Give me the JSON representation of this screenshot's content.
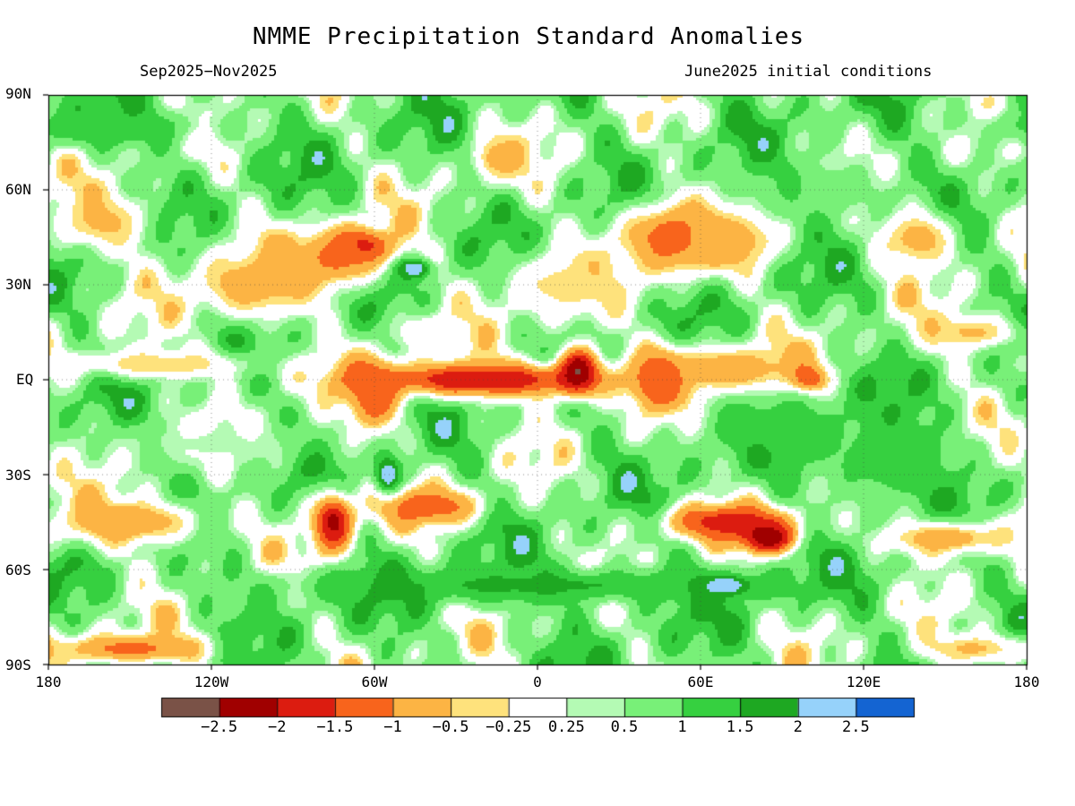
{
  "header": {
    "title": "NMME Precipitation Standard Anomalies",
    "period": "Sep2025−Nov2025",
    "init": "June2025 initial conditions"
  },
  "axes": {
    "lat_labels": [
      "90N",
      "60N",
      "30N",
      "EQ",
      "30S",
      "60S",
      "90S"
    ],
    "lon_labels": [
      "180",
      "120W",
      "60W",
      "0",
      "60E",
      "120E",
      "180"
    ]
  },
  "colorbar": {
    "colors": [
      "#7a5247",
      "#a00000",
      "#dc1c10",
      "#f8641c",
      "#fcb444",
      "#fee27c",
      "#ffffff",
      "#b4fab4",
      "#78f078",
      "#36d040",
      "#1ea822",
      "#96d2fa",
      "#1464d2"
    ],
    "labels": [
      "−2.5",
      "−2",
      "−1.5",
      "−1",
      "−0.5",
      "−0.25",
      "0.25",
      "0.5",
      "1",
      "1.5",
      "2",
      "2.5"
    ]
  },
  "map_data": {
    "type": "global-anomaly-map",
    "x_range": [
      -180,
      180
    ],
    "y_range": [
      -90,
      90
    ],
    "background_anomaly": 0.7,
    "features": [
      {
        "lon": -65,
        "lat": 42,
        "rx": 12,
        "ry": 6,
        "value": -2.2
      },
      {
        "lon": -75,
        "lat": 38,
        "rx": 18,
        "ry": 10,
        "value": -1.2
      },
      {
        "lon": -105,
        "lat": 30,
        "rx": 25,
        "ry": 12,
        "value": -0.8
      },
      {
        "lon": -160,
        "lat": 50,
        "rx": 20,
        "ry": 10,
        "value": -0.6
      },
      {
        "lon": -45,
        "lat": 35,
        "rx": 6,
        "ry": 3,
        "value": 2.5
      },
      {
        "lon": -20,
        "lat": 0,
        "rx": 50,
        "ry": 6,
        "value": -2.0
      },
      {
        "lon": 15,
        "lat": 3,
        "rx": 8,
        "ry": 8,
        "value": -2.6
      },
      {
        "lon": 45,
        "lat": 0,
        "rx": 10,
        "ry": 10,
        "value": -1.8
      },
      {
        "lon": 70,
        "lat": 3,
        "rx": 30,
        "ry": 8,
        "value": -1.0
      },
      {
        "lon": 100,
        "lat": 0,
        "rx": 6,
        "ry": 4,
        "value": -1.8
      },
      {
        "lon": -140,
        "lat": 5,
        "rx": 40,
        "ry": 5,
        "value": -0.5
      },
      {
        "lon": -60,
        "lat": -5,
        "rx": 10,
        "ry": 12,
        "value": -1.5
      },
      {
        "lon": -75,
        "lat": -45,
        "rx": 8,
        "ry": 10,
        "value": -2.2
      },
      {
        "lon": -40,
        "lat": -40,
        "rx": 20,
        "ry": 6,
        "value": -1.4
      },
      {
        "lon": -150,
        "lat": -45,
        "rx": 30,
        "ry": 8,
        "value": -1.0
      },
      {
        "lon": 70,
        "lat": -45,
        "rx": 25,
        "ry": 6,
        "value": -1.8
      },
      {
        "lon": 85,
        "lat": -50,
        "rx": 10,
        "ry": 5,
        "value": -2.5
      },
      {
        "lon": 150,
        "lat": -50,
        "rx": 25,
        "ry": 6,
        "value": -1.0
      },
      {
        "lon": -150,
        "lat": -85,
        "rx": 30,
        "ry": 5,
        "value": -1.2
      },
      {
        "lon": 160,
        "lat": -85,
        "rx": 20,
        "ry": 5,
        "value": -0.6
      },
      {
        "lon": 50,
        "lat": 45,
        "rx": 20,
        "ry": 12,
        "value": -1.5
      },
      {
        "lon": 70,
        "lat": 45,
        "rx": 20,
        "ry": 10,
        "value": -0.9
      },
      {
        "lon": 10,
        "lat": 30,
        "rx": 25,
        "ry": 12,
        "value": -0.4
      },
      {
        "lon": 140,
        "lat": 45,
        "rx": 15,
        "ry": 10,
        "value": -0.8
      },
      {
        "lon": 160,
        "lat": 15,
        "rx": 20,
        "ry": 6,
        "value": -0.6
      },
      {
        "lon": -15,
        "lat": 70,
        "rx": 10,
        "ry": 8,
        "value": -0.7
      },
      {
        "lon": 130,
        "lat": -25,
        "rx": 25,
        "ry": 15,
        "value": 1.5
      },
      {
        "lon": 90,
        "lat": -15,
        "rx": 30,
        "ry": 10,
        "value": 1.2
      },
      {
        "lon": -120,
        "lat": -20,
        "rx": 40,
        "ry": 8,
        "value": 0.3
      },
      {
        "lon": 0,
        "lat": -65,
        "rx": 100,
        "ry": 6,
        "value": 1.6
      },
      {
        "lon": 70,
        "lat": -65,
        "rx": 8,
        "ry": 3,
        "value": 2.5
      },
      {
        "lon": -160,
        "lat": 80,
        "rx": 40,
        "ry": 6,
        "value": 1.4
      },
      {
        "lon": -55,
        "lat": -30,
        "rx": 5,
        "ry": 6,
        "value": 2.5
      },
      {
        "lon": 100,
        "lat": 60,
        "rx": 30,
        "ry": 10,
        "value": 1.0
      },
      {
        "lon": -40,
        "lat": 15,
        "rx": 15,
        "ry": 6,
        "value": -0.2
      }
    ]
  }
}
